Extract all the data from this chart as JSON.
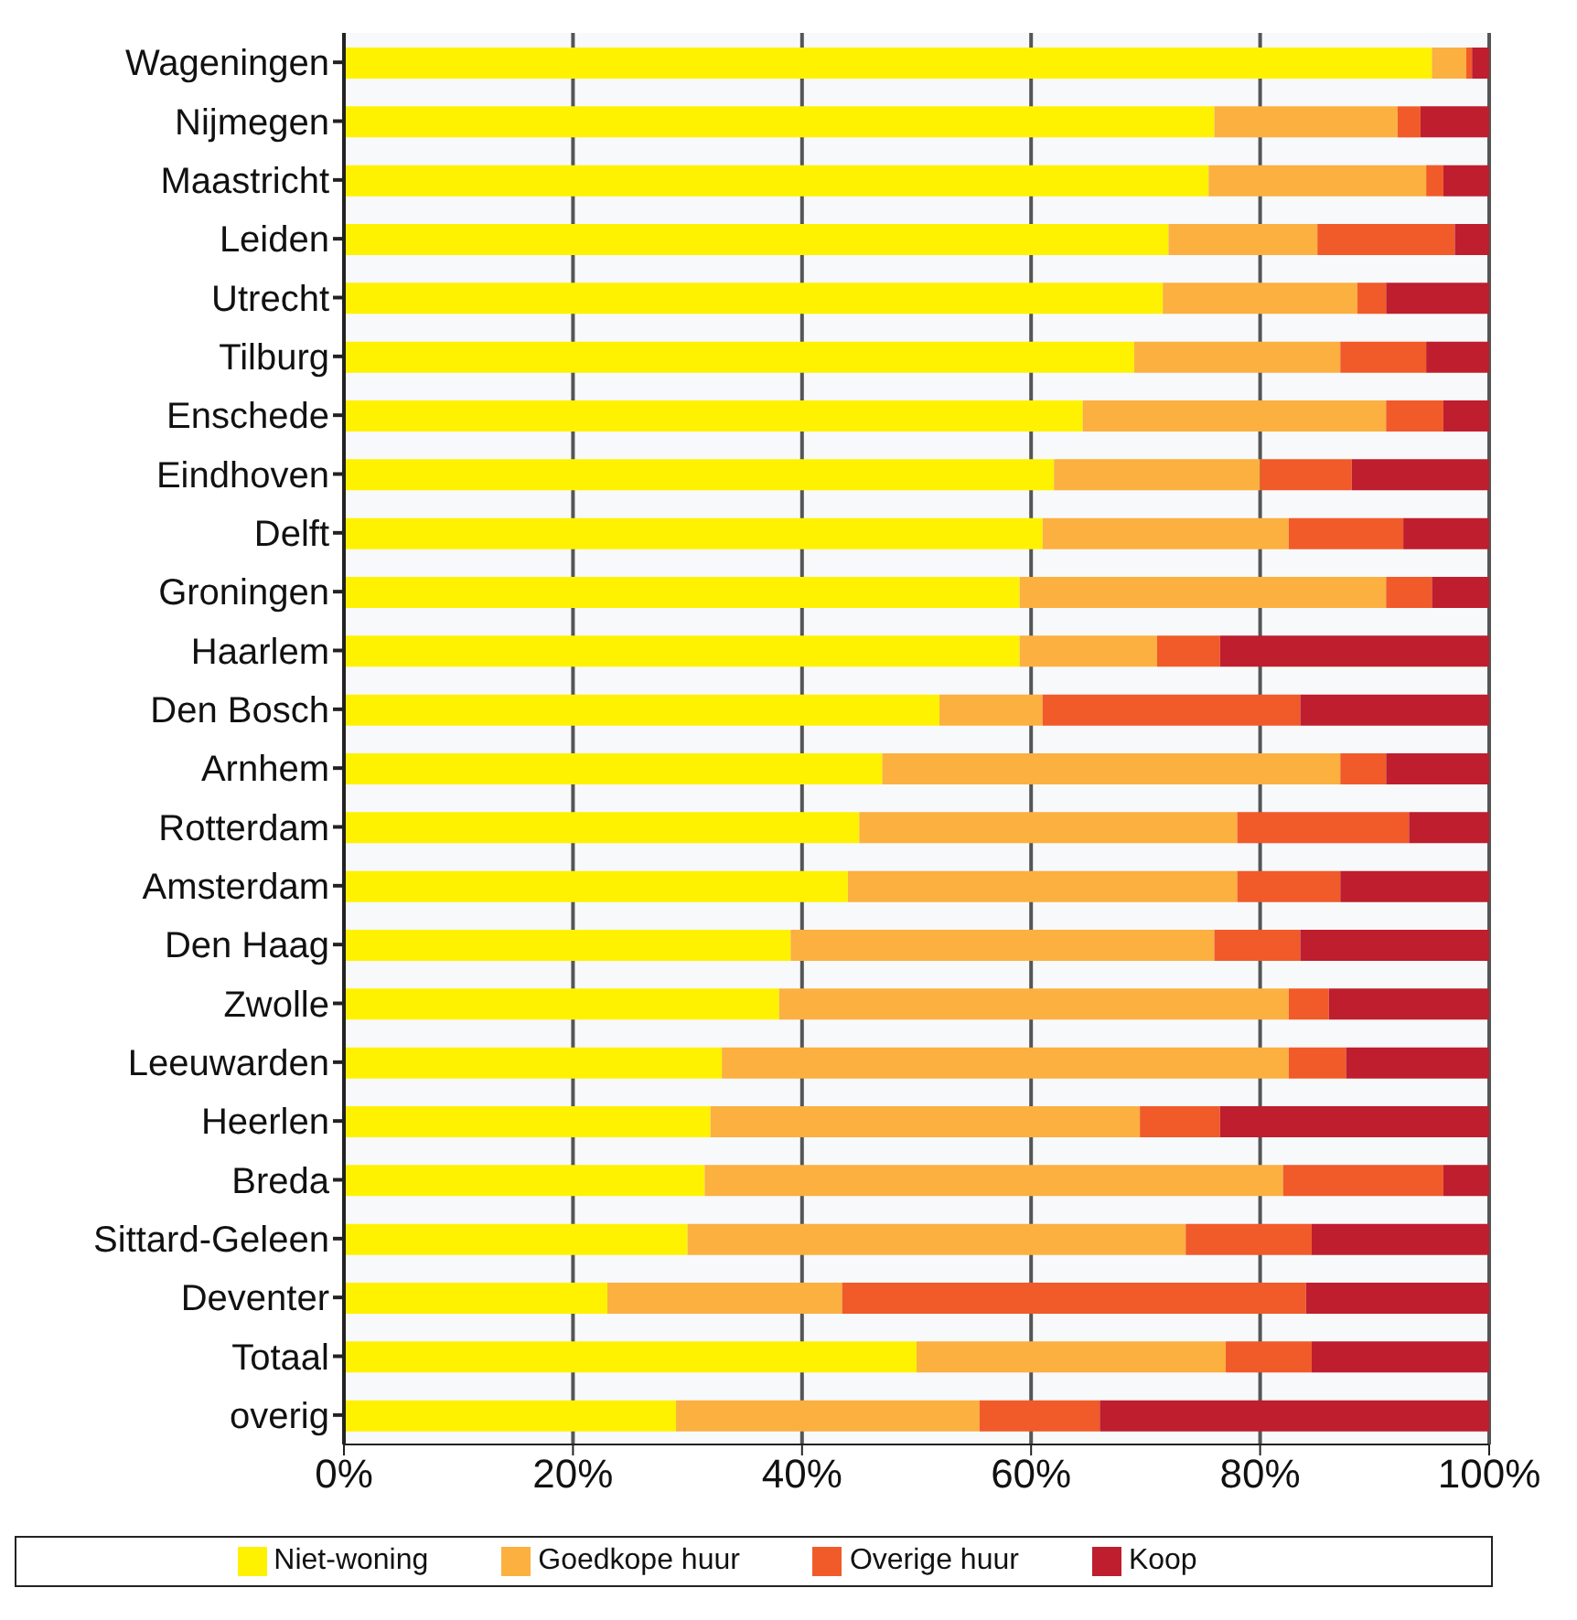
{
  "chart_data": {
    "type": "bar",
    "orientation": "horizontal",
    "stacked": true,
    "categories": [
      "Wageningen",
      "Nijmegen",
      "Maastricht",
      "Leiden",
      "Utrecht",
      "Tilburg",
      "Enschede",
      "Eindhoven",
      "Delft",
      "Groningen",
      "Haarlem",
      "Den Bosch",
      "Arnhem",
      "Rotterdam",
      "Amsterdam",
      "Den Haag",
      "Zwolle",
      "Leeuwarden",
      "Heerlen",
      "Breda",
      "Sittard-Geleen",
      "Deventer",
      "Totaal",
      "overig"
    ],
    "series": [
      {
        "name": "Niet-woning",
        "color": "#fff200",
        "values": [
          95,
          76,
          75.5,
          72,
          71.5,
          69,
          64.5,
          62,
          61,
          59,
          59,
          52,
          47,
          45,
          44,
          39,
          38,
          33,
          32,
          31.5,
          30,
          23,
          50,
          29
        ]
      },
      {
        "name": "Goedkope huur",
        "color": "#fbb040",
        "values": [
          3,
          16,
          19,
          13,
          17,
          18,
          26.5,
          18,
          21.5,
          32,
          12,
          9,
          40,
          33,
          34,
          37,
          44.5,
          49.5,
          37.5,
          50.5,
          43.5,
          20.5,
          27,
          26.5
        ]
      },
      {
        "name": "Overige huur",
        "color": "#f15a29",
        "values": [
          0.5,
          2,
          1.5,
          12,
          2.5,
          7.5,
          5,
          8,
          10,
          4,
          5.5,
          22.5,
          4,
          15,
          9,
          7.5,
          3.5,
          5,
          7,
          14,
          11,
          40.5,
          7.5,
          10.5
        ]
      },
      {
        "name": "Koop",
        "color": "#be1e2d",
        "values": [
          1.5,
          6,
          4,
          3,
          9,
          5.5,
          4,
          12,
          7.5,
          5,
          23.5,
          16.5,
          9,
          7,
          13,
          16.5,
          14,
          12.5,
          23.5,
          4,
          15.5,
          16,
          15.5,
          34
        ]
      }
    ],
    "xlim": [
      0,
      100
    ],
    "xticks": [
      {
        "value": 0,
        "label": "0%"
      },
      {
        "value": 20,
        "label": "20%"
      },
      {
        "value": 40,
        "label": "40%"
      },
      {
        "value": 60,
        "label": "60%"
      },
      {
        "value": 80,
        "label": "80%"
      },
      {
        "value": 100,
        "label": "100%"
      }
    ],
    "grid": "x",
    "legend": "bottom"
  }
}
